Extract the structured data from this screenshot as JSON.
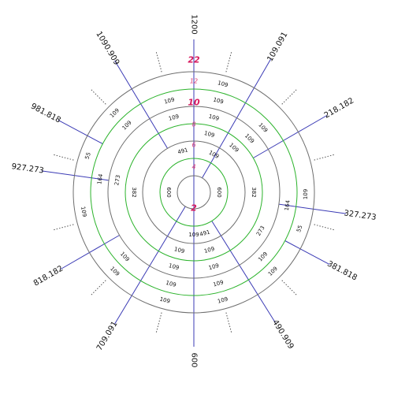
{
  "colors": {
    "gray_ring": "#6e6e6e",
    "green_ring": "#2bb32b",
    "spoke": "#3b3bb5",
    "tick": "#555555",
    "ring_label": "#e0407a",
    "ring_label_major": "#d81b60"
  },
  "outer_labels": [
    {
      "text": "1200",
      "angle": 0
    },
    {
      "text": "109.091",
      "angle": 30
    },
    {
      "text": "218.182",
      "angle": 60
    },
    {
      "text": "327.273",
      "angle": 98
    },
    {
      "text": "381.818",
      "angle": 118
    },
    {
      "text": "490.909",
      "angle": 148
    },
    {
      "text": "600",
      "angle": 180
    },
    {
      "text": "709.091",
      "angle": 211
    },
    {
      "text": "818.182",
      "angle": 240
    },
    {
      "text": "927.273",
      "angle": 278
    },
    {
      "text": "981.818",
      "angle": 298
    },
    {
      "text": "1090.909",
      "angle": 329
    }
  ],
  "ring_labels": [
    {
      "text": "2",
      "level": 1,
      "major": true
    },
    {
      "text": "4",
      "level": 2,
      "major": false
    },
    {
      "text": "6",
      "level": 3,
      "major": false
    },
    {
      "text": "8",
      "level": 4,
      "major": false
    },
    {
      "text": "10",
      "level": 5,
      "major": true
    },
    {
      "text": "12",
      "level": 6,
      "major": false
    },
    {
      "text": "22",
      "level": 7,
      "major": true
    }
  ],
  "segment_labels": [
    {
      "text": "600",
      "angle": 90,
      "level": 1.5
    },
    {
      "text": "600",
      "angle": 270,
      "level": 1.5
    },
    {
      "text": "491",
      "angle": 345,
      "level": 2.5
    },
    {
      "text": "109",
      "angle": 28,
      "level": 2.5
    },
    {
      "text": "491",
      "angle": 165,
      "level": 2.5
    },
    {
      "text": "109",
      "angle": 180,
      "level": 2.5
    },
    {
      "text": "109",
      "angle": 15,
      "level": 3.5
    },
    {
      "text": "109",
      "angle": 42,
      "level": 3.5
    },
    {
      "text": "382",
      "angle": 90,
      "level": 3.5
    },
    {
      "text": "109",
      "angle": 165,
      "level": 3.5
    },
    {
      "text": "109",
      "angle": 194,
      "level": 3.5
    },
    {
      "text": "382",
      "angle": 270,
      "level": 3.5
    },
    {
      "text": "109",
      "angle": 345,
      "level": 4.5
    },
    {
      "text": "109",
      "angle": 15,
      "level": 4.5
    },
    {
      "text": "109",
      "angle": 46,
      "level": 4.5
    },
    {
      "text": "273",
      "angle": 120,
      "level": 4.5
    },
    {
      "text": "109",
      "angle": 165,
      "level": 4.5
    },
    {
      "text": "109",
      "angle": 195,
      "level": 4.5
    },
    {
      "text": "273",
      "angle": 279,
      "level": 4.5
    },
    {
      "text": "109",
      "angle": 345,
      "level": 5.5
    },
    {
      "text": "109",
      "angle": 15,
      "level": 5.5
    },
    {
      "text": "109",
      "angle": 47,
      "level": 5.5
    },
    {
      "text": "109",
      "angle": 133,
      "level": 5.5
    },
    {
      "text": "109",
      "angle": 165,
      "level": 5.5
    },
    {
      "text": "109",
      "angle": 194,
      "level": 5.5
    },
    {
      "text": "109",
      "angle": 227,
      "level": 5.5
    },
    {
      "text": "164",
      "angle": 98,
      "level": 5.5
    },
    {
      "text": "164",
      "angle": 278,
      "level": 5.5
    },
    {
      "text": "109",
      "angle": 315,
      "level": 5.5
    },
    {
      "text": "109",
      "angle": 15,
      "level": 6.5
    },
    {
      "text": "109",
      "angle": 91,
      "level": 6.5
    },
    {
      "text": "55",
      "angle": 109,
      "level": 6.5
    },
    {
      "text": "109",
      "angle": 135,
      "level": 6.5
    },
    {
      "text": "109",
      "angle": 165,
      "level": 6.5
    },
    {
      "text": "109",
      "angle": 195,
      "level": 6.5
    },
    {
      "text": "109",
      "angle": 225,
      "level": 6.5
    },
    {
      "text": "109",
      "angle": 260,
      "level": 6.5
    },
    {
      "text": "55",
      "angle": 289,
      "level": 6.5
    },
    {
      "text": "109",
      "angle": 315,
      "level": 6.5
    }
  ]
}
